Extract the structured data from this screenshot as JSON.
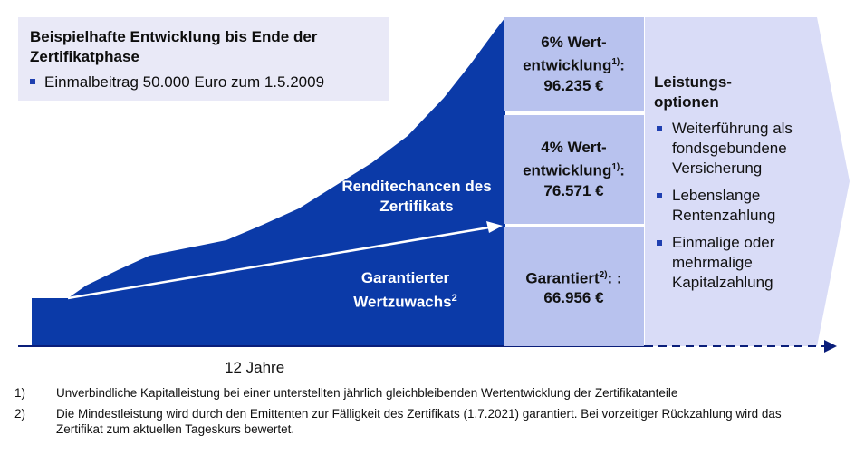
{
  "title": {
    "heading": "Beispielhafte Entwicklung bis Ende der Zertifikatphase",
    "bullet": "Einmalbeitrag 50.000 Euro zum 1.5.2009"
  },
  "chart_labels": {
    "renditechancen": "Renditechancen des Zertifikats",
    "garantierter_line1": "Garantierter",
    "garantierter_line2": "Wertzuwachs",
    "garantierter_sup": "2"
  },
  "values": {
    "six": {
      "line1": "6% Wert-",
      "line2": "entwicklung",
      "sup": "1)",
      "suffix": ":",
      "amount": "96.235 €"
    },
    "four": {
      "line1": "4% Wert-",
      "line2": "entwicklung",
      "sup": "1)",
      "suffix": ":",
      "amount": "76.571 €"
    },
    "garantiert": {
      "line1": "Garantiert",
      "sup": "2)",
      "suffix": ": :",
      "amount": "66.956 €"
    }
  },
  "leistungsoptionen": {
    "title_line1": "Leistungs-",
    "title_line2": "optionen",
    "items": [
      "Weiterführung als fondsgebundene Versicherung",
      "Lebenslange Rentenzahlung",
      "Einmalige oder mehrmalige Kapitalzahlung"
    ]
  },
  "axis": {
    "years": "12 Jahre"
  },
  "footnotes": [
    {
      "num": "1)",
      "text": "Unverbindliche Kapitalleistung bei einer unterstellten jährlich gleichbleibenden Wertentwicklung der Zertifikatanteile"
    },
    {
      "num": "2)",
      "text": "Die Mindestleistung wird durch den Emittenten zur Fälligkeit des Zertifikats (1.7.2021) garantiert. Bei vorzeitiger Rückzahlung wird das Zertifikat zum aktuellen Tageskurs bewertet."
    }
  ],
  "colors": {
    "area": "#0b3aa8",
    "value_box": "#b8c2ee",
    "options_arrow": "#d9dcf7",
    "title_box": "#e9e9f7",
    "axis": "#0a1e7a"
  }
}
